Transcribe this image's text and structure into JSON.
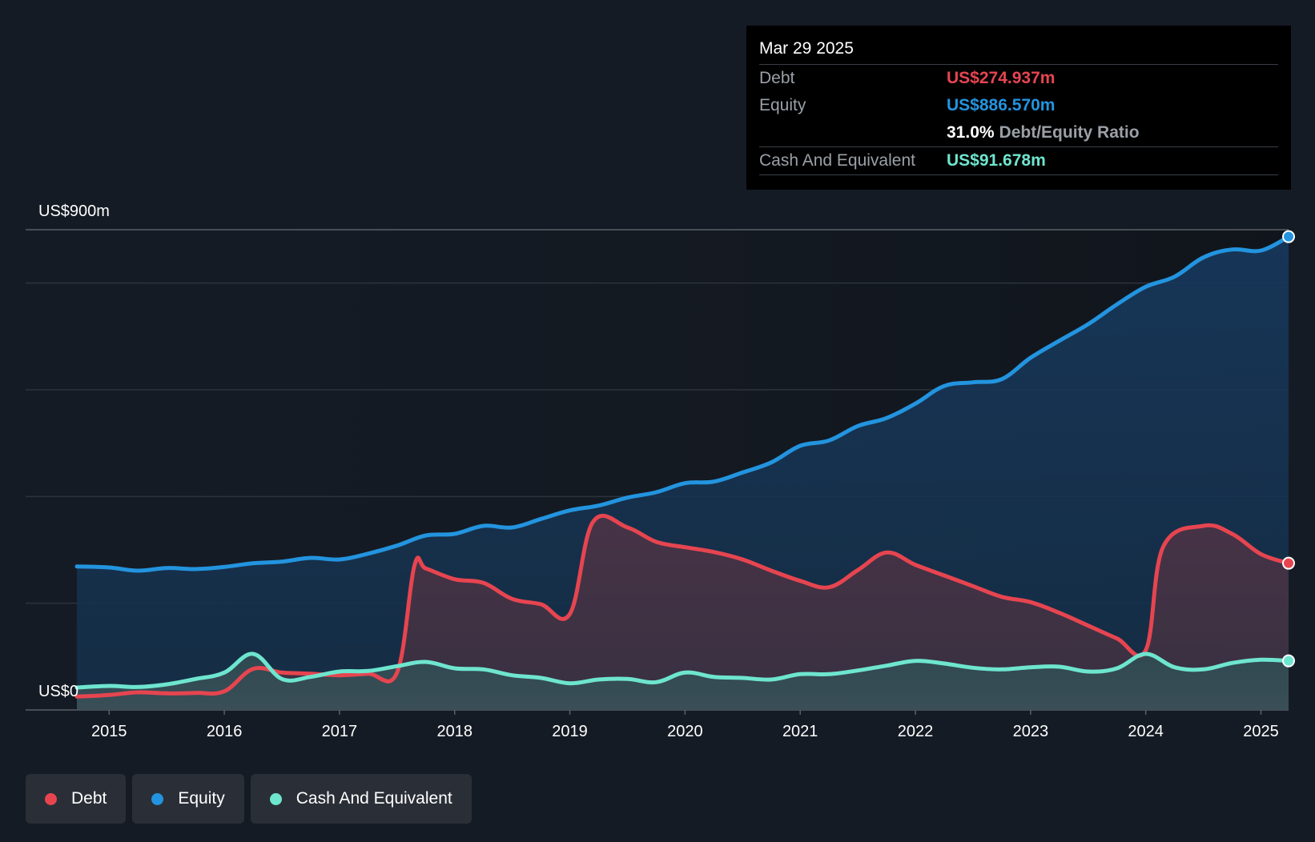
{
  "chart_data": {
    "type": "area",
    "ylabel_top": "US$900m",
    "ylabel_bottom": "US$0",
    "ylim": [
      0,
      900
    ],
    "x_ticks": [
      "2015",
      "2016",
      "2017",
      "2018",
      "2019",
      "2020",
      "2021",
      "2022",
      "2023",
      "2024",
      "2025"
    ],
    "x_range": [
      2014.72,
      2025.24
    ],
    "series": [
      {
        "name": "Equity",
        "color": "#2394df",
        "points": [
          [
            2014.72,
            269
          ],
          [
            2015.0,
            267
          ],
          [
            2015.25,
            261
          ],
          [
            2015.5,
            266
          ],
          [
            2015.75,
            264
          ],
          [
            2016.0,
            268
          ],
          [
            2016.25,
            275
          ],
          [
            2016.5,
            278
          ],
          [
            2016.75,
            285
          ],
          [
            2017.0,
            282
          ],
          [
            2017.25,
            293
          ],
          [
            2017.5,
            308
          ],
          [
            2017.75,
            327
          ],
          [
            2018.0,
            330
          ],
          [
            2018.25,
            345
          ],
          [
            2018.5,
            342
          ],
          [
            2018.75,
            358
          ],
          [
            2019.0,
            374
          ],
          [
            2019.25,
            383
          ],
          [
            2019.5,
            398
          ],
          [
            2019.75,
            408
          ],
          [
            2020.0,
            425
          ],
          [
            2020.25,
            428
          ],
          [
            2020.5,
            445
          ],
          [
            2020.75,
            464
          ],
          [
            2021.0,
            495
          ],
          [
            2021.25,
            505
          ],
          [
            2021.5,
            532
          ],
          [
            2021.75,
            547
          ],
          [
            2022.0,
            574
          ],
          [
            2022.25,
            607
          ],
          [
            2022.5,
            614
          ],
          [
            2022.75,
            620
          ],
          [
            2023.0,
            660
          ],
          [
            2023.25,
            692
          ],
          [
            2023.5,
            723
          ],
          [
            2023.75,
            760
          ],
          [
            2024.0,
            793
          ],
          [
            2024.25,
            812
          ],
          [
            2024.5,
            848
          ],
          [
            2024.75,
            863
          ],
          [
            2025.0,
            861
          ],
          [
            2025.24,
            887
          ]
        ]
      },
      {
        "name": "Debt",
        "color": "#e64550",
        "points": [
          [
            2014.72,
            25
          ],
          [
            2015.0,
            28
          ],
          [
            2015.25,
            33
          ],
          [
            2015.5,
            31
          ],
          [
            2015.75,
            32
          ],
          [
            2016.0,
            35
          ],
          [
            2016.25,
            77
          ],
          [
            2016.5,
            70
          ],
          [
            2016.75,
            68
          ],
          [
            2017.0,
            65
          ],
          [
            2017.25,
            68
          ],
          [
            2017.5,
            70
          ],
          [
            2017.65,
            270
          ],
          [
            2017.75,
            265
          ],
          [
            2018.0,
            245
          ],
          [
            2018.25,
            238
          ],
          [
            2018.5,
            208
          ],
          [
            2018.75,
            198
          ],
          [
            2019.0,
            180
          ],
          [
            2019.2,
            352
          ],
          [
            2019.5,
            342
          ],
          [
            2019.75,
            315
          ],
          [
            2020.0,
            305
          ],
          [
            2020.25,
            296
          ],
          [
            2020.5,
            282
          ],
          [
            2020.75,
            261
          ],
          [
            2021.0,
            242
          ],
          [
            2021.25,
            230
          ],
          [
            2021.5,
            262
          ],
          [
            2021.75,
            295
          ],
          [
            2022.0,
            272
          ],
          [
            2022.25,
            252
          ],
          [
            2022.5,
            232
          ],
          [
            2022.75,
            212
          ],
          [
            2023.0,
            202
          ],
          [
            2023.25,
            182
          ],
          [
            2023.5,
            158
          ],
          [
            2023.75,
            134
          ],
          [
            2024.0,
            112
          ],
          [
            2024.15,
            305
          ],
          [
            2024.5,
            345
          ],
          [
            2024.75,
            330
          ],
          [
            2025.0,
            292
          ],
          [
            2025.24,
            275
          ]
        ]
      },
      {
        "name": "Cash And Equivalent",
        "color": "#6ee5cf",
        "points": [
          [
            2014.72,
            42
          ],
          [
            2015.0,
            45
          ],
          [
            2015.25,
            43
          ],
          [
            2015.5,
            48
          ],
          [
            2015.75,
            58
          ],
          [
            2016.0,
            70
          ],
          [
            2016.25,
            105
          ],
          [
            2016.5,
            58
          ],
          [
            2016.75,
            62
          ],
          [
            2017.0,
            72
          ],
          [
            2017.25,
            73
          ],
          [
            2017.5,
            82
          ],
          [
            2017.75,
            90
          ],
          [
            2018.0,
            78
          ],
          [
            2018.25,
            76
          ],
          [
            2018.5,
            65
          ],
          [
            2018.75,
            60
          ],
          [
            2019.0,
            50
          ],
          [
            2019.25,
            57
          ],
          [
            2019.5,
            58
          ],
          [
            2019.75,
            52
          ],
          [
            2020.0,
            70
          ],
          [
            2020.25,
            62
          ],
          [
            2020.5,
            60
          ],
          [
            2020.75,
            57
          ],
          [
            2021.0,
            67
          ],
          [
            2021.25,
            67
          ],
          [
            2021.5,
            74
          ],
          [
            2021.75,
            83
          ],
          [
            2022.0,
            92
          ],
          [
            2022.25,
            87
          ],
          [
            2022.5,
            79
          ],
          [
            2022.75,
            76
          ],
          [
            2023.0,
            80
          ],
          [
            2023.25,
            81
          ],
          [
            2023.5,
            72
          ],
          [
            2023.75,
            78
          ],
          [
            2024.0,
            105
          ],
          [
            2024.25,
            80
          ],
          [
            2024.5,
            76
          ],
          [
            2024.75,
            88
          ],
          [
            2025.0,
            94
          ],
          [
            2025.24,
            92
          ]
        ]
      }
    ]
  },
  "tooltip": {
    "date": "Mar 29 2025",
    "debt_label": "Debt",
    "debt_value": "US$274.937m",
    "equity_label": "Equity",
    "equity_value": "US$886.570m",
    "ratio_value": "31.0%",
    "ratio_label": "Debt/Equity Ratio",
    "cash_label": "Cash And Equivalent",
    "cash_value": "US$91.678m"
  },
  "legend": {
    "debt": "Debt",
    "equity": "Equity",
    "cash": "Cash And Equivalent"
  },
  "colors": {
    "debt": "#e64550",
    "equity": "#2394df",
    "cash": "#6ee5cf"
  }
}
